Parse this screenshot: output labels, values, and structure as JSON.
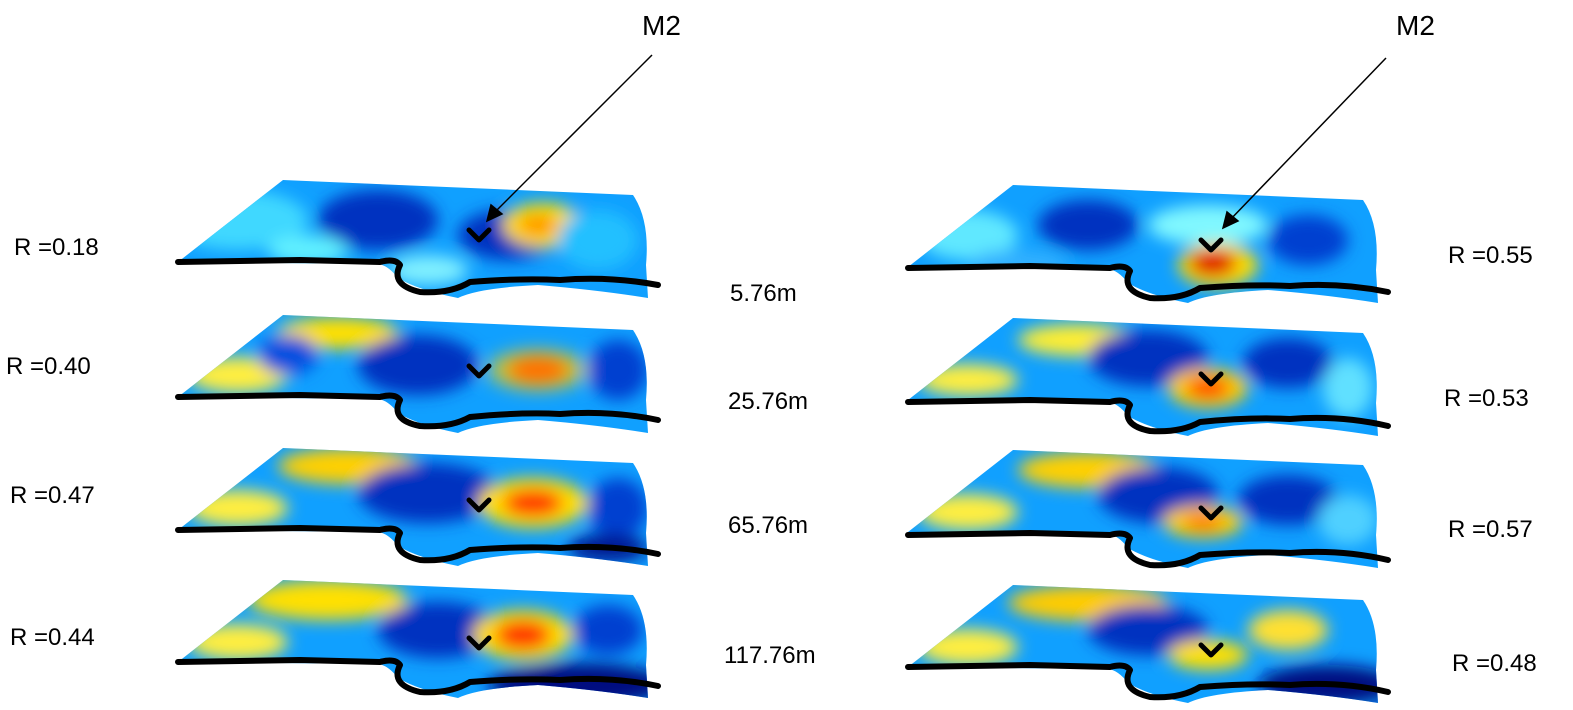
{
  "annotations": {
    "left_marker": "M2",
    "right_marker": "M2"
  },
  "depths": [
    "5.76m",
    "25.76m",
    "65.76m",
    "117.76m"
  ],
  "left_correlations": [
    "R =0.18",
    "R =0.40",
    "R =0.47",
    "R =0.44"
  ],
  "right_correlations": [
    "R =0.55",
    "R =0.53",
    "R =0.57",
    "R =0.48"
  ],
  "colormap": [
    "#00008f",
    "#0050ff",
    "#00d0ff",
    "#80ff80",
    "#ffee00",
    "#ff8000",
    "#e00000"
  ],
  "coastline_color": "#000000"
}
